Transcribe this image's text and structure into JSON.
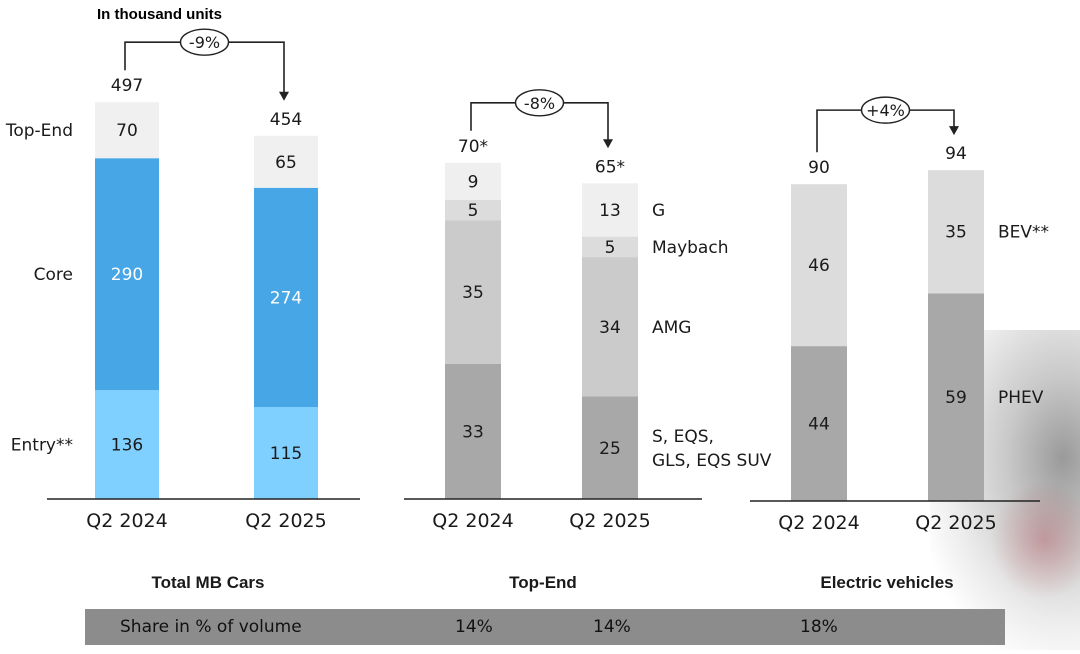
{
  "unit_note": "In thousand units",
  "share": {
    "label": "Share in % of volume",
    "values": [
      "14%",
      "14%",
      "18%"
    ]
  },
  "chart_data": [
    {
      "type": "bar",
      "title": "Total MB Cars",
      "categories": [
        "Q2 2024",
        "Q2 2025"
      ],
      "totals": [
        "497",
        "454"
      ],
      "change": "-9%",
      "series": [
        {
          "name": "Entry**",
          "values": [
            136,
            115
          ],
          "color": "#7fcfff",
          "text_color": "#1a1a1a"
        },
        {
          "name": "Core",
          "values": [
            290,
            274
          ],
          "color": "#47a6e6",
          "text_color": "#ffffff"
        },
        {
          "name": "Top-End",
          "values": [
            70,
            65
          ],
          "color": "#f0f0f0",
          "text_color": "#1a1a1a"
        }
      ],
      "legend_position": "left"
    },
    {
      "type": "bar",
      "title": "Top-End",
      "categories": [
        "Q2 2024",
        "Q2 2025"
      ],
      "totals": [
        "70*",
        "65*"
      ],
      "change": "-8%",
      "series": [
        {
          "name": "S, EQS,\nGLS, EQS SUV",
          "values": [
            33,
            25
          ],
          "color": "#a8a8a8",
          "text_color": "#1a1a1a"
        },
        {
          "name": "AMG",
          "values": [
            35,
            34
          ],
          "color": "#cbcbcb",
          "text_color": "#1a1a1a"
        },
        {
          "name": "Maybach",
          "values": [
            5,
            5
          ],
          "color": "#dcdcdc",
          "text_color": "#1a1a1a"
        },
        {
          "name": "G",
          "values": [
            9,
            13
          ],
          "color": "#efefef",
          "text_color": "#1a1a1a"
        }
      ],
      "legend_position": "right"
    },
    {
      "type": "bar",
      "title": "Electric vehicles",
      "categories": [
        "Q2 2024",
        "Q2 2025"
      ],
      "totals": [
        "90",
        "94"
      ],
      "change": "+4%",
      "series": [
        {
          "name": "PHEV",
          "values": [
            44,
            59
          ],
          "color": "#a8a8a8",
          "text_color": "#1a1a1a"
        },
        {
          "name": "BEV**",
          "values": [
            46,
            35
          ],
          "color": "#dcdcdc",
          "text_color": "#1a1a1a"
        }
      ],
      "legend_position": "right"
    }
  ]
}
